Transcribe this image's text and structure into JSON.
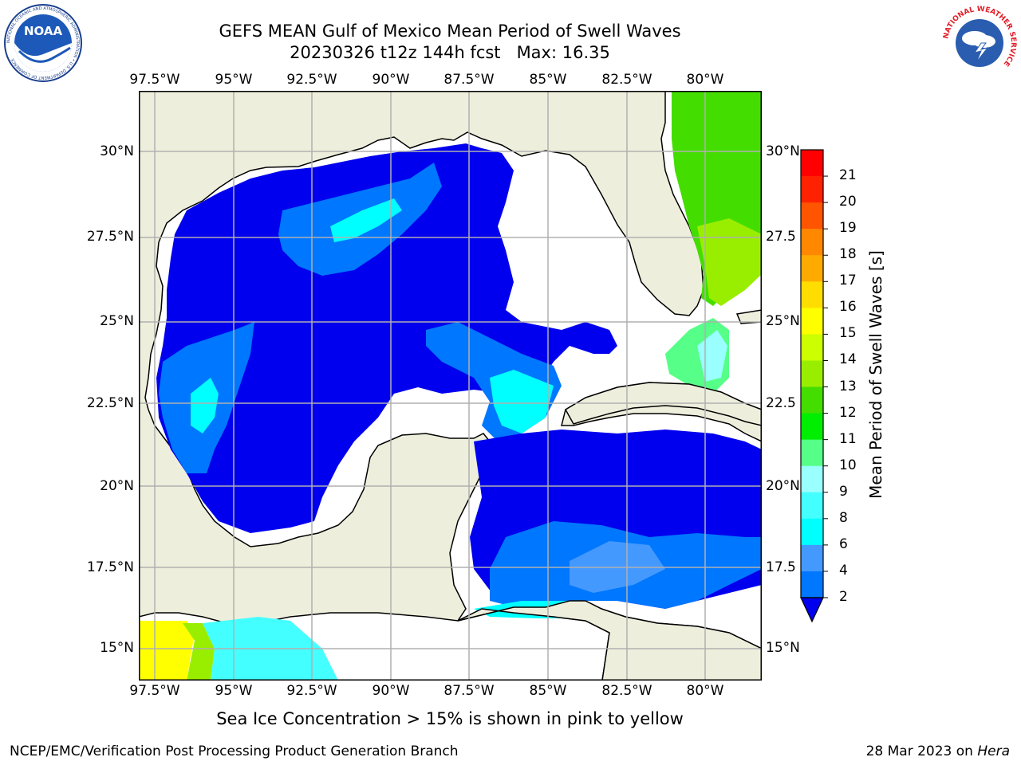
{
  "header": {
    "title_line1": "GEFS MEAN Gulf of Mexico Mean Period of Swell Waves",
    "title_line2": "20230326 t12z 144h fcst   Max: 16.35"
  },
  "map": {
    "lon_labels": [
      "97.5°W",
      "95°W",
      "92.5°W",
      "90°W",
      "87.5°W",
      "85°W",
      "82.5°W",
      "80°W"
    ],
    "lat_labels_left": [
      "30°N",
      "27.5°N",
      "25°N",
      "22.5°N",
      "20°N",
      "17.5°N",
      "15°N"
    ],
    "lat_labels_right": [
      "30°N",
      "27.5",
      "25°N",
      "22.5",
      "20°N",
      "17.5",
      "15°N"
    ],
    "land_color": "#eeeedd",
    "no_data_color": "#ffffff",
    "gridline_color": "#b0b0b0"
  },
  "colorbar": {
    "label": "Mean Period of Swell Waves [s]",
    "ticks": [
      "2",
      "4",
      "6",
      "8",
      "9",
      "10",
      "11",
      "12",
      "13",
      "14",
      "15",
      "16",
      "17",
      "18",
      "19",
      "20",
      "21"
    ],
    "colors": [
      "#0000ee",
      "#0077ff",
      "#4499ff",
      "#00ffff",
      "#44ffff",
      "#99ffff",
      "#55ff88",
      "#00ee00",
      "#44dd00",
      "#99ee00",
      "#ccff00",
      "#ffff00",
      "#ffdd00",
      "#ffaa00",
      "#ff8800",
      "#ff5500",
      "#ff2200",
      "#ff0000"
    ]
  },
  "footer": {
    "note": "Sea Ice Concentration > 15% is shown in pink to yellow",
    "credit": "NCEP/EMC/Verification Post Processing Product Generation Branch",
    "date": "28 Mar 2023 on",
    "machine": "Hera"
  },
  "logos": {
    "noaa_text": "NOAA",
    "noaa_ring_text": "NATIONAL OCEANIC AND ATMOSPHERIC ADMINISTRATION • U.S. DEPARTMENT OF COMMERCE",
    "nws_ring_text": "NATIONAL WEATHER SERVICE"
  }
}
